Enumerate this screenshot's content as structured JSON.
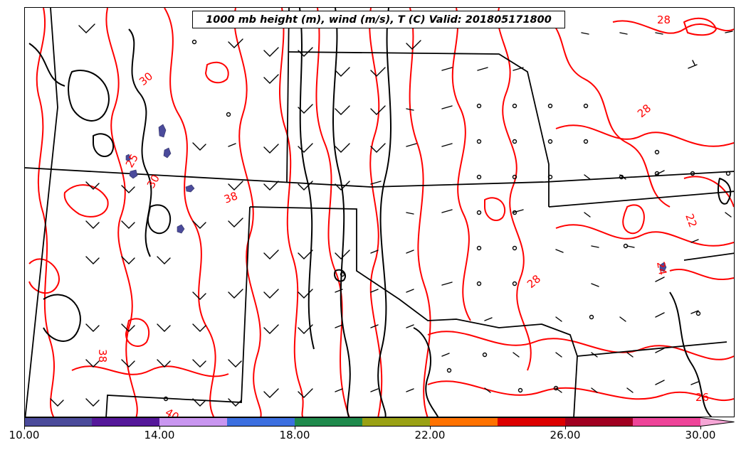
{
  "title": "1000 mb height (m), wind (m/s), T (C) Valid: 201805171800",
  "colorbar": {
    "ticks": [
      "10.00",
      "14.00",
      "18.00",
      "22.00",
      "26.00",
      "30.00"
    ],
    "tick_values": [
      10,
      14,
      18,
      22,
      26,
      30
    ],
    "min": 10,
    "max": 30,
    "segments": [
      {
        "from": 10,
        "to": 12,
        "color": "#4b4b9b"
      },
      {
        "from": 12,
        "to": 14,
        "color": "#55189a"
      },
      {
        "from": 14,
        "to": 16,
        "color": "#c996f0"
      },
      {
        "from": 16,
        "to": 18,
        "color": "#3c6fe0"
      },
      {
        "from": 18,
        "to": 20,
        "color": "#1f8a4c"
      },
      {
        "from": 20,
        "to": 22,
        "color": "#9aa114"
      },
      {
        "from": 22,
        "to": 24,
        "color": "#ff7200"
      },
      {
        "from": 24,
        "to": 26,
        "color": "#dd0000"
      },
      {
        "from": 26,
        "to": 28,
        "color": "#a00020"
      },
      {
        "from": 28,
        "to": 30,
        "color": "#ee4499"
      }
    ],
    "extend_color": "#f6a6d6"
  },
  "contour_labels": [
    "28",
    "30",
    "28",
    "25",
    "30",
    "38",
    "22",
    "28",
    "38",
    "24",
    "40",
    "26"
  ],
  "colors": {
    "temperature_contour": "#ff0000",
    "height_contour": "#000000",
    "border": "#000000",
    "shading": "#4b4b9b"
  }
}
